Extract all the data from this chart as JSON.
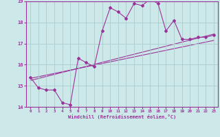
{
  "background_color": "#cce8e8",
  "grid_color": "#aacccc",
  "line_color": "#993399",
  "xlim": [
    -0.5,
    23.5
  ],
  "ylim": [
    14,
    19
  ],
  "xlabel": "Windchill (Refroidissement éolien,°C)",
  "xticks": [
    0,
    1,
    2,
    3,
    4,
    5,
    6,
    7,
    8,
    9,
    10,
    11,
    12,
    13,
    14,
    15,
    16,
    17,
    18,
    19,
    20,
    21,
    22,
    23
  ],
  "yticks": [
    14,
    15,
    16,
    17,
    18,
    19
  ],
  "line1_x": [
    0,
    1,
    2,
    3,
    4,
    5,
    6,
    7,
    8,
    9,
    10,
    11,
    12,
    13,
    14,
    15,
    16,
    17,
    18,
    19,
    20,
    21,
    22,
    23
  ],
  "line1_y": [
    15.4,
    14.9,
    14.8,
    14.8,
    14.2,
    14.1,
    16.3,
    16.1,
    15.9,
    17.6,
    18.7,
    18.5,
    18.2,
    18.9,
    18.8,
    19.1,
    18.9,
    17.6,
    18.1,
    17.2,
    17.2,
    17.3,
    17.3,
    17.4
  ],
  "line2_x": [
    0,
    23
  ],
  "line2_y": [
    15.35,
    17.15
  ],
  "line3_x": [
    0,
    23
  ],
  "line3_y": [
    15.25,
    17.45
  ],
  "marker": "D",
  "marker_size": 2.0,
  "line_width": 0.8
}
